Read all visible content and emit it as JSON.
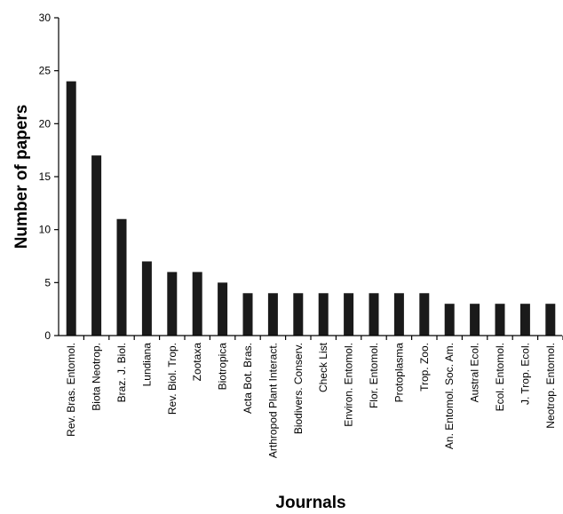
{
  "chart_data": {
    "type": "bar",
    "title": "",
    "xlabel": "Journals",
    "ylabel": "Number of papers",
    "ylim": [
      0,
      30
    ],
    "yticks": [
      0,
      5,
      10,
      15,
      20,
      25,
      30
    ],
    "grid": false,
    "legend": "none",
    "bar_color": "#1a1a1a",
    "categories": [
      "Rev. Bras. Entomol.",
      "Biota Neotrop.",
      "Braz. J. Biol.",
      "Lundiana",
      "Rev. Biol. Trop.",
      "Zootaxa",
      "Biotropica",
      "Acta Bot. Bras.",
      "Arthropod Plant Interact.",
      "Biodivers. Conserv.",
      "Check List",
      "Environ. Entomol.",
      "Flor. Entomol.",
      "Protoplasma",
      "Trop. Zoo.",
      "An. Entomol. Soc. Am.",
      "Austral Ecol.",
      "Ecol. Entomol.",
      "J. Trop. Ecol.",
      "Neotrop. Entomol."
    ],
    "values": [
      24,
      17,
      11,
      7,
      6,
      6,
      5,
      4,
      4,
      4,
      4,
      4,
      4,
      4,
      4,
      3,
      3,
      3,
      3,
      3
    ]
  }
}
